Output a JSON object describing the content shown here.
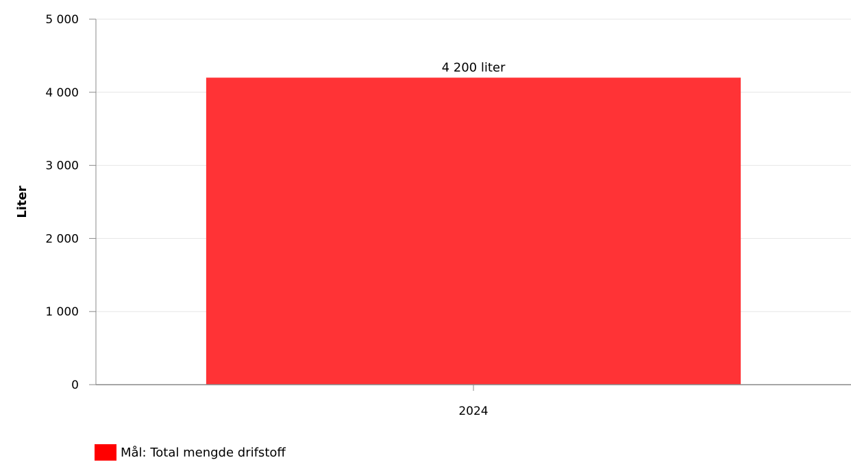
{
  "chart_data": {
    "type": "bar",
    "categories": [
      "2024"
    ],
    "series": [
      {
        "name": "Mål: Total mengde drifstoff",
        "values": [
          4200
        ],
        "color": "#ff3336",
        "data_labels": [
          "4 200 liter"
        ]
      }
    ],
    "ylabel": "Liter",
    "ylim": [
      0,
      5000
    ],
    "yticks": [
      0,
      1000,
      2000,
      3000,
      4000,
      5000
    ],
    "ytick_labels": [
      "0",
      "1 000",
      "2 000",
      "3 000",
      "4 000",
      "5 000"
    ],
    "grid": true,
    "legend": {
      "position": "bottom-left",
      "label": "Mål: Total mengde drifstoff",
      "color": "#ff0000"
    },
    "colors": {
      "gridline": "#e6e6e6",
      "axis": "#888888"
    }
  }
}
